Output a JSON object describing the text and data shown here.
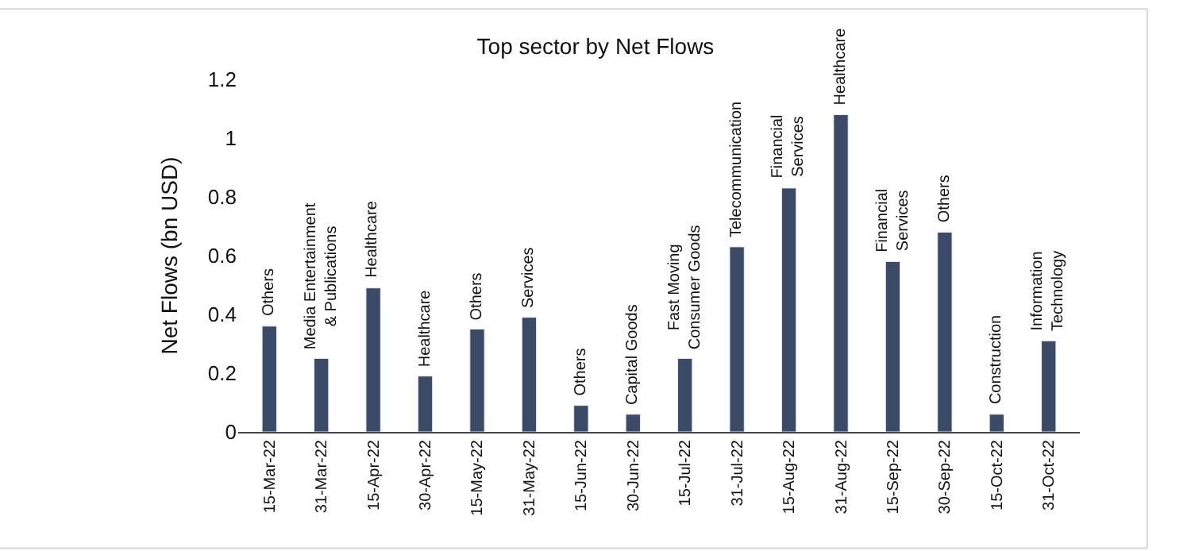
{
  "chart_data": {
    "type": "bar",
    "title": "Top sector by Net Flows",
    "ylabel": "Net Flows (bn USD)",
    "categories": [
      "15-Mar-22",
      "31-Mar-22",
      "15-Apr-22",
      "30-Apr-22",
      "15-May-22",
      "31-May-22",
      "15-Jun-22",
      "30-Jun-22",
      "15-Jul-22",
      "31-Jul-22",
      "15-Aug-22",
      "31-Aug-22",
      "15-Sep-22",
      "30-Sep-22",
      "15-Oct-22",
      "31-Oct-22"
    ],
    "values": [
      0.36,
      0.25,
      0.49,
      0.19,
      0.35,
      0.39,
      0.09,
      0.06,
      0.25,
      0.63,
      0.83,
      1.08,
      0.58,
      0.68,
      0.06,
      0.31
    ],
    "color": "#3b4a66",
    "ylim": [
      0,
      1.2
    ],
    "yticks": [
      0,
      0.2,
      0.4,
      0.6,
      0.8,
      1,
      1.2
    ],
    "legend": false,
    "annotations": [
      {
        "text": "Others",
        "x": "15-Mar-22",
        "y": 0.36
      },
      {
        "text": "Media Entertainment\n& Publications",
        "x": "31-Mar-22",
        "y": 0.25
      },
      {
        "text": "Healthcare",
        "x": "15-Apr-22",
        "y": 0.49
      },
      {
        "text": "Healthcare",
        "x": "30-Apr-22",
        "y": 0.19
      },
      {
        "text": "Others",
        "x": "15-May-22",
        "y": 0.35
      },
      {
        "text": "Services",
        "x": "31-May-22",
        "y": 0.39
      },
      {
        "text": "Others",
        "x": "15-Jun-22",
        "y": 0.09
      },
      {
        "text": "Capital Goods",
        "x": "30-Jun-22",
        "y": 0.06
      },
      {
        "text": "Fast Moving\nConsumer Goods",
        "x": "15-Jul-22",
        "y": 0.25
      },
      {
        "text": "Telecommunication",
        "x": "31-Jul-22",
        "y": 0.63
      },
      {
        "text": "Financial\nServices",
        "x": "15-Aug-22",
        "y": 0.83
      },
      {
        "text": "Healthcare",
        "x": "31-Aug-22",
        "y": 1.08
      },
      {
        "text": "Financial\nServices",
        "x": "15-Sep-22",
        "y": 0.58
      },
      {
        "text": "Others",
        "x": "30-Sep-22",
        "y": 0.68
      },
      {
        "text": "Construction",
        "x": "15-Oct-22",
        "y": 0.06
      },
      {
        "text": "Information\nTechnology",
        "x": "31-Oct-22",
        "y": 0.31
      }
    ]
  }
}
